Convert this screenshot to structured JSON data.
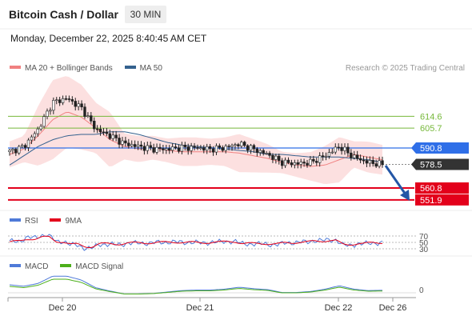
{
  "header": {
    "title": "Bitcoin Cash / Dollar",
    "interval": "30 MIN",
    "datetime": "Monday, December 22, 2025 8:40:45 AM CET"
  },
  "source": "Research © 2025 Trading Central",
  "colors": {
    "green_level": "#76b83a",
    "blue_level": "#2f6fe8",
    "red_level": "#e3001b",
    "dark_label": "#333333",
    "ma20": "#f08080",
    "ma50": "#34618e",
    "bollinger_fill": "#fbd6d6",
    "rsi": "#4f7ad8",
    "rsi_signal": "#e3001b",
    "macd": "#4f7ad8",
    "macd_signal": "#4caf1a",
    "arrow": "#2456a6"
  },
  "price_panel": {
    "legend": [
      {
        "label": "MA 20 + Bollinger Bands",
        "color": "#f08080"
      },
      {
        "label": "MA 50",
        "color": "#34618e"
      }
    ],
    "levels": [
      {
        "value": 614.6,
        "label": "614.6",
        "type": "resistance",
        "color": "#76b83a"
      },
      {
        "value": 605.7,
        "label": "605.7",
        "type": "resistance",
        "color": "#76b83a"
      },
      {
        "value": 590.8,
        "label": "590.8",
        "type": "pivot",
        "color": "#2f6fe8"
      },
      {
        "value": 578.5,
        "label": "578.5",
        "type": "last",
        "color": "#333333"
      },
      {
        "value": 560.8,
        "label": "560.8",
        "type": "support",
        "color": "#e3001b"
      },
      {
        "value": 551.9,
        "label": "551.9",
        "type": "support",
        "color": "#e3001b"
      }
    ]
  },
  "rsi_panel": {
    "legend": [
      {
        "label": "RSI",
        "color": "#4f7ad8"
      },
      {
        "label": "9MA",
        "color": "#e3001b"
      }
    ],
    "ticks": [
      "70",
      "50",
      "30"
    ]
  },
  "macd_panel": {
    "legend": [
      {
        "label": "MACD",
        "color": "#4f7ad8"
      },
      {
        "label": "MACD Signal",
        "color": "#4caf1a"
      }
    ],
    "ticks": [
      "0"
    ]
  },
  "x_axis": {
    "labels": [
      "Dec 20",
      "Dec 21",
      "Dec 22",
      "Dec 26"
    ]
  },
  "chart_data": {
    "type": "line",
    "title": "Bitcoin Cash / Dollar",
    "subtitle": "30 MIN",
    "ylim": [
      548,
      640
    ],
    "x_labels": [
      "Dec 20",
      "Dec 21",
      "Dec 22",
      "Dec 26"
    ],
    "series": [
      {
        "name": "MA 20 + Bollinger Bands",
        "values": [
          586,
          590,
          600,
          612,
          618,
          614,
          606,
          597,
          592,
          590,
          591,
          589,
          588,
          588,
          588,
          588,
          587,
          585,
          583,
          580,
          578,
          577,
          578,
          582,
          586,
          584,
          582
        ]
      },
      {
        "name": "MA 50",
        "values": [
          578,
          585,
          592,
          597,
          600,
          601,
          601,
          603,
          603,
          601,
          598,
          595,
          593,
          592,
          591,
          590,
          589,
          588,
          586,
          586,
          585,
          584,
          584,
          584,
          583,
          582,
          580
        ]
      }
    ],
    "close": [
      588,
      592,
      605,
      625,
      628,
      621,
      605,
      600,
      594,
      592,
      590,
      590,
      591,
      591,
      590,
      591,
      594,
      590,
      586,
      580,
      579,
      580,
      585,
      592,
      584,
      580,
      578.5
    ],
    "levels": [
      614.6,
      605.7,
      590.8,
      578.5,
      560.8,
      551.9
    ],
    "rsi": {
      "ylim": [
        0,
        100
      ],
      "ticks": [
        70,
        50,
        30
      ]
    },
    "macd": {
      "ticks": [
        0
      ]
    }
  }
}
